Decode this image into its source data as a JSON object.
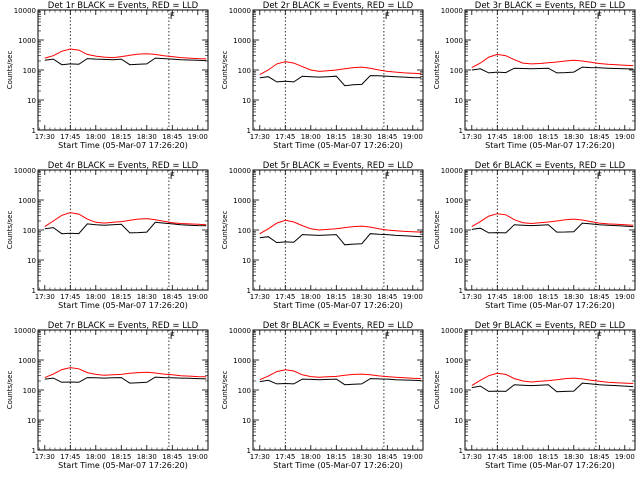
{
  "chart_data": [
    {
      "type": "line",
      "title": "Det 1r BLACK = Events, RED = LLD",
      "xlabel": "Start Time (05-Mar-07 17:26:20)",
      "ylabel": "Counts/sec",
      "xticks": [
        "17:30",
        "17:45",
        "18:00",
        "18:15",
        "18:30",
        "18:45",
        "19:00"
      ],
      "yticks": [
        "1",
        "10",
        "100",
        "1000",
        "10000"
      ],
      "ylim": [
        1,
        10000
      ],
      "yscale": "log",
      "flare_marker": "F",
      "x": [
        0,
        5,
        10,
        15,
        20,
        25,
        30,
        35,
        40,
        45,
        50,
        55,
        60,
        65,
        70,
        75,
        80,
        85,
        90,
        95
      ],
      "series": [
        {
          "color": "#000000",
          "values": [
            210,
            230,
            150,
            160,
            155,
            240,
            230,
            225,
            220,
            230,
            150,
            155,
            160,
            250,
            240,
            230,
            220,
            215,
            210,
            205
          ]
        },
        {
          "color": "#ff0000",
          "values": [
            250,
            300,
            420,
            500,
            460,
            330,
            290,
            270,
            260,
            280,
            310,
            340,
            350,
            330,
            300,
            280,
            260,
            250,
            240,
            235
          ]
        }
      ]
    },
    {
      "type": "line",
      "title": "Det 2r BLACK = Events, RED = LLD",
      "xlabel": "Start Time (05-Mar-07 17:26:20)",
      "ylabel": "Counts/sec",
      "xticks": [
        "17:30",
        "17:45",
        "18:00",
        "18:15",
        "18:30",
        "18:45",
        "19:00"
      ],
      "yticks": [
        "1",
        "10",
        "100",
        "1000",
        "10000"
      ],
      "ylim": [
        1,
        10000
      ],
      "yscale": "log",
      "flare_marker": "F",
      "x": [
        0,
        5,
        10,
        15,
        20,
        25,
        30,
        35,
        40,
        45,
        50,
        55,
        60,
        65,
        70,
        75,
        80,
        85,
        90,
        95
      ],
      "series": [
        {
          "color": "#000000",
          "values": [
            55,
            60,
            40,
            42,
            40,
            62,
            60,
            58,
            60,
            62,
            30,
            32,
            33,
            65,
            64,
            62,
            60,
            58,
            56,
            55
          ]
        },
        {
          "color": "#ff0000",
          "values": [
            70,
            100,
            160,
            190,
            170,
            130,
            100,
            90,
            95,
            100,
            110,
            120,
            125,
            115,
            100,
            90,
            85,
            80,
            78,
            75
          ]
        }
      ]
    },
    {
      "type": "line",
      "title": "Det 3r BLACK = Events, RED = LLD",
      "xlabel": "Start Time (05-Mar-07 17:26:20)",
      "ylabel": "Counts/sec",
      "xticks": [
        "17:30",
        "17:45",
        "18:00",
        "18:15",
        "18:30",
        "18:45",
        "19:00"
      ],
      "yticks": [
        "1",
        "10",
        "100",
        "1000",
        "10000"
      ],
      "ylim": [
        1,
        10000
      ],
      "yscale": "log",
      "flare_marker": "F",
      "x": [
        0,
        5,
        10,
        15,
        20,
        25,
        30,
        35,
        40,
        45,
        50,
        55,
        60,
        65,
        70,
        75,
        80,
        85,
        90,
        95
      ],
      "series": [
        {
          "color": "#000000",
          "values": [
            100,
            110,
            80,
            85,
            82,
            115,
            112,
            110,
            112,
            115,
            80,
            82,
            85,
            125,
            120,
            118,
            115,
            112,
            110,
            108
          ]
        },
        {
          "color": "#ff0000",
          "values": [
            120,
            170,
            270,
            330,
            300,
            220,
            170,
            160,
            165,
            175,
            185,
            200,
            210,
            200,
            180,
            165,
            155,
            150,
            145,
            140
          ]
        }
      ]
    },
    {
      "type": "line",
      "title": "Det 4r BLACK = Events, RED = LLD",
      "xlabel": "Start Time (05-Mar-07 17:26:20)",
      "ylabel": "Counts/sec",
      "xticks": [
        "17:30",
        "17:45",
        "18:00",
        "18:15",
        "18:30",
        "18:45",
        "19:00"
      ],
      "yticks": [
        "1",
        "10",
        "100",
        "1000",
        "10000"
      ],
      "ylim": [
        1,
        10000
      ],
      "yscale": "log",
      "flare_marker": "F",
      "x": [
        0,
        5,
        10,
        15,
        20,
        25,
        30,
        35,
        40,
        45,
        50,
        55,
        60,
        65,
        70,
        75,
        80,
        85,
        90,
        95
      ],
      "series": [
        {
          "color": "#000000",
          "values": [
            110,
            120,
            75,
            78,
            76,
            160,
            150,
            145,
            150,
            155,
            80,
            82,
            85,
            180,
            170,
            160,
            150,
            145,
            140,
            138
          ]
        },
        {
          "color": "#ff0000",
          "values": [
            130,
            200,
            310,
            380,
            340,
            230,
            180,
            170,
            180,
            190,
            210,
            230,
            240,
            220,
            195,
            175,
            165,
            160,
            155,
            150
          ]
        }
      ]
    },
    {
      "type": "line",
      "title": "Det 5r BLACK = Events, RED = LLD",
      "xlabel": "Start Time (05-Mar-07 17:26:20)",
      "ylabel": "Counts/sec",
      "xticks": [
        "17:30",
        "17:45",
        "18:00",
        "18:15",
        "18:30",
        "18:45",
        "19:00"
      ],
      "yticks": [
        "1",
        "10",
        "100",
        "1000",
        "10000"
      ],
      "ylim": [
        1,
        10000
      ],
      "yscale": "log",
      "flare_marker": "F",
      "x": [
        0,
        5,
        10,
        15,
        20,
        25,
        30,
        35,
        40,
        45,
        50,
        55,
        60,
        65,
        70,
        75,
        80,
        85,
        90,
        95
      ],
      "series": [
        {
          "color": "#000000",
          "values": [
            55,
            60,
            38,
            40,
            39,
            70,
            68,
            66,
            68,
            70,
            32,
            34,
            35,
            75,
            72,
            70,
            66,
            64,
            62,
            60
          ]
        },
        {
          "color": "#ff0000",
          "values": [
            75,
            110,
            170,
            210,
            185,
            140,
            110,
            100,
            105,
            110,
            120,
            130,
            135,
            125,
            110,
            100,
            95,
            90,
            88,
            85
          ]
        }
      ]
    },
    {
      "type": "line",
      "title": "Det 6r BLACK = Events, RED = LLD",
      "xlabel": "Start Time (05-Mar-07 17:26:20)",
      "ylabel": "Counts/sec",
      "xticks": [
        "17:30",
        "17:45",
        "18:00",
        "18:15",
        "18:30",
        "18:45",
        "19:00"
      ],
      "yticks": [
        "1",
        "10",
        "100",
        "1000",
        "10000"
      ],
      "ylim": [
        1,
        10000
      ],
      "yscale": "log",
      "flare_marker": "F",
      "x": [
        0,
        5,
        10,
        15,
        20,
        25,
        30,
        35,
        40,
        45,
        50,
        55,
        60,
        65,
        70,
        75,
        80,
        85,
        90,
        95
      ],
      "series": [
        {
          "color": "#000000",
          "values": [
            105,
            115,
            80,
            82,
            80,
            150,
            145,
            140,
            145,
            150,
            85,
            86,
            88,
            170,
            160,
            150,
            145,
            140,
            135,
            130
          ]
        },
        {
          "color": "#ff0000",
          "values": [
            130,
            190,
            290,
            350,
            320,
            220,
            175,
            165,
            175,
            185,
            200,
            220,
            230,
            215,
            190,
            170,
            160,
            155,
            150,
            145
          ]
        }
      ]
    },
    {
      "type": "line",
      "title": "Det 7r BLACK = Events, RED = LLD",
      "xlabel": "Start Time (05-Mar-07 17:26:20)",
      "ylabel": "Counts/sec",
      "xticks": [
        "17:30",
        "17:45",
        "18:00",
        "18:15",
        "18:30",
        "18:45",
        "19:00"
      ],
      "yticks": [
        "1",
        "10",
        "100",
        "1000",
        "10000"
      ],
      "ylim": [
        1,
        10000
      ],
      "yscale": "log",
      "flare_marker": "F",
      "x": [
        0,
        5,
        10,
        15,
        20,
        25,
        30,
        35,
        40,
        45,
        50,
        55,
        60,
        65,
        70,
        75,
        80,
        85,
        90,
        95
      ],
      "series": [
        {
          "color": "#000000",
          "values": [
            230,
            250,
            180,
            185,
            180,
            260,
            255,
            250,
            255,
            260,
            170,
            175,
            180,
            270,
            260,
            255,
            250,
            245,
            240,
            235
          ]
        },
        {
          "color": "#ff0000",
          "values": [
            260,
            340,
            480,
            560,
            510,
            380,
            330,
            310,
            320,
            330,
            360,
            380,
            390,
            370,
            340,
            320,
            300,
            290,
            280,
            275
          ]
        }
      ]
    },
    {
      "type": "line",
      "title": "Det 8r BLACK = Events, RED = LLD",
      "xlabel": "Start Time (05-Mar-07 17:26:20)",
      "ylabel": "Counts/sec",
      "xticks": [
        "17:30",
        "17:45",
        "18:00",
        "18:15",
        "18:30",
        "18:45",
        "19:00"
      ],
      "yticks": [
        "1",
        "10",
        "100",
        "1000",
        "10000"
      ],
      "ylim": [
        1,
        10000
      ],
      "yscale": "log",
      "flare_marker": "F",
      "x": [
        0,
        5,
        10,
        15,
        20,
        25,
        30,
        35,
        40,
        45,
        50,
        55,
        60,
        65,
        70,
        75,
        80,
        85,
        90,
        95
      ],
      "series": [
        {
          "color": "#000000",
          "values": [
            190,
            210,
            160,
            165,
            160,
            230,
            225,
            220,
            225,
            230,
            150,
            155,
            160,
            240,
            235,
            230,
            220,
            215,
            210,
            205
          ]
        },
        {
          "color": "#ff0000",
          "values": [
            220,
            290,
            410,
            470,
            430,
            320,
            280,
            265,
            275,
            285,
            310,
            330,
            340,
            320,
            295,
            280,
            265,
            255,
            245,
            240
          ]
        }
      ]
    },
    {
      "type": "line",
      "title": "Det 9r BLACK = Events, RED = LLD",
      "xlabel": "Start Time (05-Mar-07 17:26:20)",
      "ylabel": "Counts/sec",
      "xticks": [
        "17:30",
        "17:45",
        "18:00",
        "18:15",
        "18:30",
        "18:45",
        "19:00"
      ],
      "yticks": [
        "1",
        "10",
        "100",
        "1000",
        "10000"
      ],
      "ylim": [
        1,
        10000
      ],
      "yscale": "log",
      "flare_marker": "F",
      "x": [
        0,
        5,
        10,
        15,
        20,
        25,
        30,
        35,
        40,
        45,
        50,
        55,
        60,
        65,
        70,
        75,
        80,
        85,
        90,
        95
      ],
      "series": [
        {
          "color": "#000000",
          "values": [
            120,
            135,
            90,
            92,
            90,
            150,
            145,
            140,
            145,
            150,
            88,
            90,
            92,
            170,
            160,
            150,
            145,
            140,
            135,
            130
          ]
        },
        {
          "color": "#ff0000",
          "values": [
            140,
            210,
            300,
            360,
            330,
            240,
            200,
            185,
            195,
            205,
            220,
            240,
            250,
            235,
            210,
            195,
            180,
            175,
            170,
            165
          ]
        }
      ]
    }
  ]
}
